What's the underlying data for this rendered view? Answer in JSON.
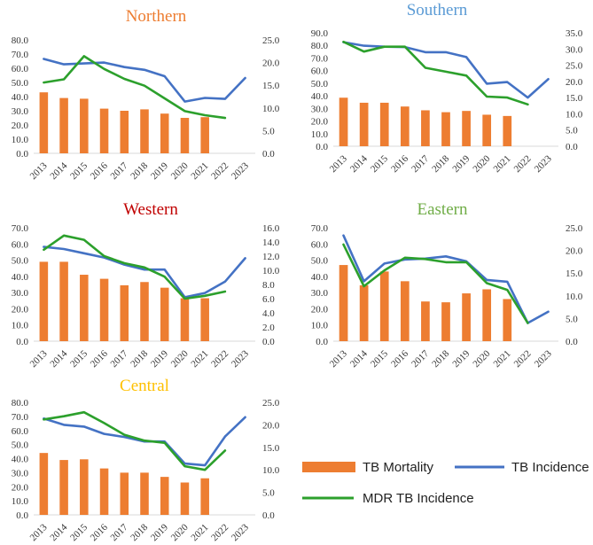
{
  "colors": {
    "mortality": "#ED7D31",
    "incidence": "#4472C4",
    "mdr": "#2CA02C",
    "northern_title": "#ED7D31",
    "southern_title": "#5B9BD5",
    "western_title": "#C00000",
    "eastern_title": "#70AD47",
    "central_title": "#FFC000"
  },
  "legend": {
    "mortality": "TB Mortality",
    "incidence": "TB Incidence",
    "mdr": "MDR TB Incidence"
  },
  "chart_data": [
    {
      "type": "bar+line",
      "title": "Northern",
      "title_color_key": "northern_title",
      "categories": [
        "2013",
        "2014",
        "2015",
        "2016",
        "2017",
        "2018",
        "2019",
        "2020",
        "2021",
        "2022",
        "2023"
      ],
      "left_axis": {
        "min": 0,
        "max": 80,
        "step": 10,
        "ticks": [
          "0.0",
          "10.0",
          "20.0",
          "30.0",
          "40.0",
          "50.0",
          "60.0",
          "70.0",
          "80.0"
        ]
      },
      "right_axis": {
        "min": 0,
        "max": 25,
        "step": 5,
        "ticks": [
          "0.0",
          "5.0",
          "10.0",
          "15.0",
          "20.0",
          "25.0"
        ]
      },
      "series": [
        {
          "name": "TB Mortality",
          "axis": "left",
          "kind": "bar",
          "values": [
            43,
            39,
            38.5,
            31.5,
            30,
            31,
            28,
            25,
            25.5,
            null,
            null
          ]
        },
        {
          "name": "TB Incidence",
          "axis": "right",
          "kind": "line",
          "values": [
            20.8,
            19.6,
            19.8,
            20.0,
            19.0,
            18.4,
            17.0,
            11.4,
            12.2,
            12.0,
            16.6
          ]
        },
        {
          "name": "MDR TB Incidence",
          "axis": "right",
          "kind": "line",
          "values": [
            15.6,
            16.3,
            21.4,
            18.6,
            16.4,
            14.9,
            12.1,
            9.3,
            8.4,
            7.8,
            null
          ]
        }
      ]
    },
    {
      "type": "bar+line",
      "title": "Southern",
      "title_color_key": "southern_title",
      "categories": [
        "2013",
        "2014",
        "2015",
        "2016",
        "2017",
        "2018",
        "2019",
        "2020",
        "2021",
        "2022",
        "2023"
      ],
      "left_axis": {
        "min": 0,
        "max": 90,
        "step": 10,
        "ticks": [
          "0.0",
          "10.0",
          "20.0",
          "30.0",
          "40.0",
          "50.0",
          "60.0",
          "70.0",
          "80.0",
          "90.0"
        ]
      },
      "right_axis": {
        "min": 0,
        "max": 35,
        "step": 5,
        "ticks": [
          "0.0",
          "5.0",
          "10.0",
          "15.0",
          "20.0",
          "25.0",
          "30.0",
          "35.0"
        ]
      },
      "series": [
        {
          "name": "TB Mortality",
          "axis": "left",
          "kind": "bar",
          "values": [
            38.5,
            34.5,
            34.5,
            31.5,
            28.5,
            27,
            28,
            25,
            24,
            null,
            null
          ]
        },
        {
          "name": "TB Incidence",
          "axis": "right",
          "kind": "line",
          "values": [
            32.1,
            31.0,
            30.7,
            30.6,
            29.0,
            29.0,
            27.5,
            19.3,
            19.8,
            15.0,
            20.7
          ]
        },
        {
          "name": "MDR TB Incidence",
          "axis": "right",
          "kind": "line",
          "values": [
            32.2,
            29.2,
            30.7,
            30.7,
            24.2,
            23.0,
            21.8,
            15.3,
            15.0,
            12.9,
            null
          ]
        }
      ]
    },
    {
      "type": "bar+line",
      "title": "Western",
      "title_color_key": "western_title",
      "categories": [
        "2013",
        "2014",
        "2015",
        "2016",
        "2017",
        "2018",
        "2019",
        "2020",
        "2021",
        "2022",
        "2023"
      ],
      "left_axis": {
        "min": 0,
        "max": 70,
        "step": 10,
        "ticks": [
          "0.0",
          "10.0",
          "20.0",
          "30.0",
          "40.0",
          "50.0",
          "60.0",
          "70.0"
        ]
      },
      "right_axis": {
        "min": 0,
        "max": 16,
        "step": 2,
        "ticks": [
          "0.0",
          "2.0",
          "4.0",
          "6.0",
          "8.0",
          "10.0",
          "12.0",
          "14.0",
          "16.0"
        ]
      },
      "series": [
        {
          "name": "TB Mortality",
          "axis": "left",
          "kind": "bar",
          "values": [
            49,
            49,
            41,
            38.5,
            34.5,
            36.5,
            33,
            26.5,
            26.5,
            null,
            null
          ]
        },
        {
          "name": "TB Incidence",
          "axis": "right",
          "kind": "line",
          "values": [
            13.3,
            13.0,
            12.4,
            11.8,
            10.8,
            10.1,
            10.1,
            6.2,
            6.8,
            8.4,
            11.7
          ]
        },
        {
          "name": "MDR TB Incidence",
          "axis": "right",
          "kind": "line",
          "values": [
            12.9,
            14.9,
            14.3,
            12.0,
            11.0,
            10.4,
            9.1,
            6.0,
            6.4,
            7.0,
            null
          ]
        }
      ]
    },
    {
      "type": "bar+line",
      "title": "Eastern",
      "title_color_key": "eastern_title",
      "categories": [
        "2013",
        "2014",
        "2015",
        "2016",
        "2017",
        "2018",
        "2019",
        "2020",
        "2021",
        "2022",
        "2023"
      ],
      "left_axis": {
        "min": 0,
        "max": 70,
        "step": 10,
        "ticks": [
          "0.0",
          "10.0",
          "20.0",
          "30.0",
          "40.0",
          "50.0",
          "60.0",
          "70.0"
        ]
      },
      "right_axis": {
        "min": 0,
        "max": 25,
        "step": 5,
        "ticks": [
          "0.0",
          "5.0",
          "10.0",
          "15.0",
          "20.0",
          "25.0"
        ]
      },
      "series": [
        {
          "name": "TB Mortality",
          "axis": "left",
          "kind": "bar",
          "values": [
            47,
            34.5,
            43,
            37,
            24.5,
            24,
            29.5,
            32,
            26,
            null,
            null
          ]
        },
        {
          "name": "TB Incidence",
          "axis": "right",
          "kind": "line",
          "values": [
            23.3,
            13.2,
            17.1,
            18.0,
            18.2,
            18.7,
            17.6,
            13.5,
            13.1,
            4.0,
            6.5
          ]
        },
        {
          "name": "MDR TB Incidence",
          "axis": "right",
          "kind": "line",
          "values": [
            21.3,
            12.1,
            15.6,
            18.4,
            18.1,
            17.4,
            17.4,
            12.8,
            11.3,
            4.0,
            null
          ]
        }
      ]
    },
    {
      "type": "bar+line",
      "title": "Central",
      "title_color_key": "central_title",
      "categories": [
        "2013",
        "2014",
        "2015",
        "2016",
        "2017",
        "2018",
        "2019",
        "2020",
        "2021",
        "2022",
        "2023"
      ],
      "left_axis": {
        "min": 0,
        "max": 80,
        "step": 10,
        "ticks": [
          "0.0",
          "10.0",
          "20.0",
          "30.0",
          "40.0",
          "50.0",
          "60.0",
          "70.0",
          "80.0"
        ]
      },
      "right_axis": {
        "min": 0,
        "max": 25,
        "step": 5,
        "ticks": [
          "0.0",
          "5.0",
          "10.0",
          "15.0",
          "20.0",
          "25.0"
        ]
      },
      "series": [
        {
          "name": "TB Mortality",
          "axis": "left",
          "kind": "bar",
          "values": [
            44,
            39,
            39.5,
            33,
            30,
            30,
            27,
            23,
            26,
            null,
            null
          ]
        },
        {
          "name": "TB Incidence",
          "axis": "right",
          "kind": "line",
          "values": [
            21.4,
            20.0,
            19.6,
            18.0,
            17.3,
            16.3,
            16.3,
            11.4,
            11.0,
            17.4,
            21.7
          ]
        },
        {
          "name": "MDR TB Incidence",
          "axis": "right",
          "kind": "line",
          "values": [
            21.2,
            21.9,
            22.8,
            20.4,
            17.8,
            16.5,
            16.0,
            10.8,
            10.0,
            14.3,
            null
          ]
        }
      ]
    }
  ]
}
